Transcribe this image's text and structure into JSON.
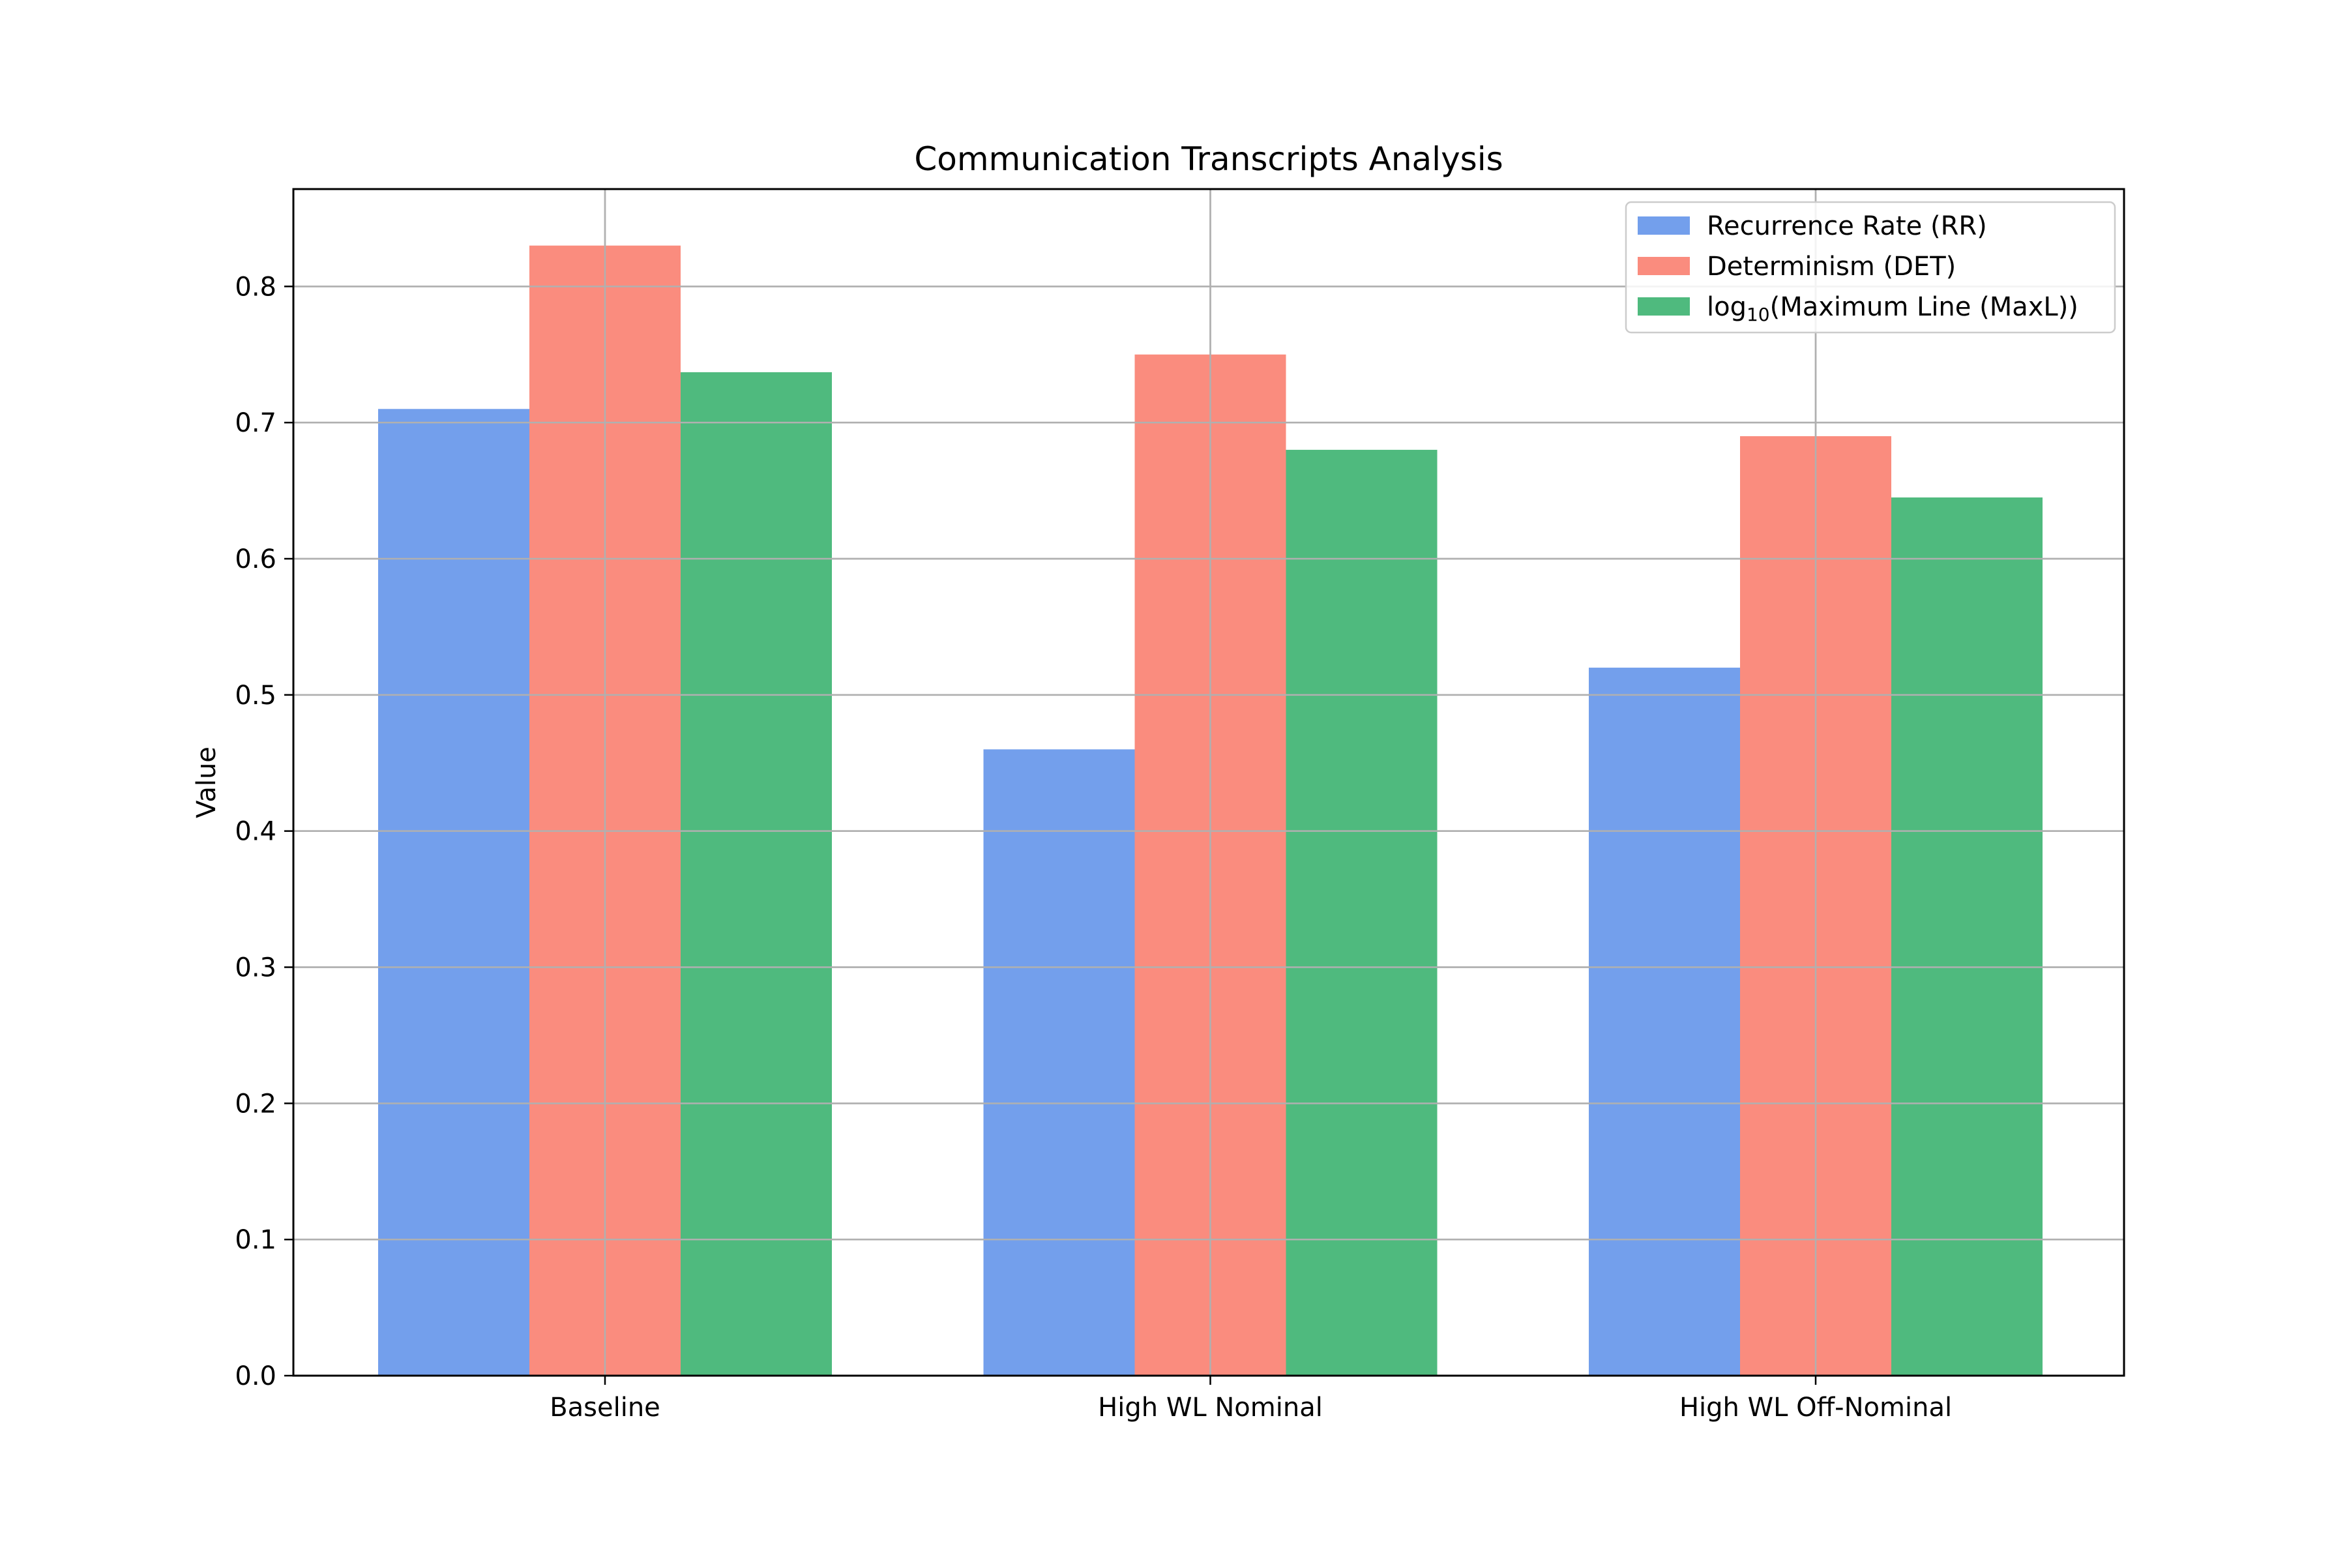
{
  "chart_data": {
    "type": "bar",
    "title": "Communication Transcripts Analysis",
    "xlabel": "",
    "ylabel": "Value",
    "categories": [
      "Baseline",
      "High WL Nominal",
      "High WL Off-Nominal"
    ],
    "series": [
      {
        "name": "Recurrence Rate (RR)",
        "values": [
          0.71,
          0.46,
          0.52
        ],
        "color": "#739fec"
      },
      {
        "name": "Determinism (DET)",
        "values": [
          0.83,
          0.75,
          0.69
        ],
        "color": "#fa8c7e"
      },
      {
        "name": "log10(Maximum Line (MaxL))",
        "values": [
          0.737,
          0.68,
          0.645
        ],
        "color": "#4fba7e"
      }
    ],
    "ylim": [
      0,
      0.8715
    ],
    "yticks": [
      "0.0",
      "0.1",
      "0.2",
      "0.3",
      "0.4",
      "0.5",
      "0.6",
      "0.7",
      "0.8"
    ],
    "grid": true,
    "legend": {
      "position": "top-right",
      "entries": [
        {
          "text": "Recurrence Rate (RR)"
        },
        {
          "text": "Determinism (DET)"
        },
        {
          "prefix": "log",
          "sub": "10",
          "text": "(Maximum Line (MaxL))"
        }
      ]
    }
  }
}
